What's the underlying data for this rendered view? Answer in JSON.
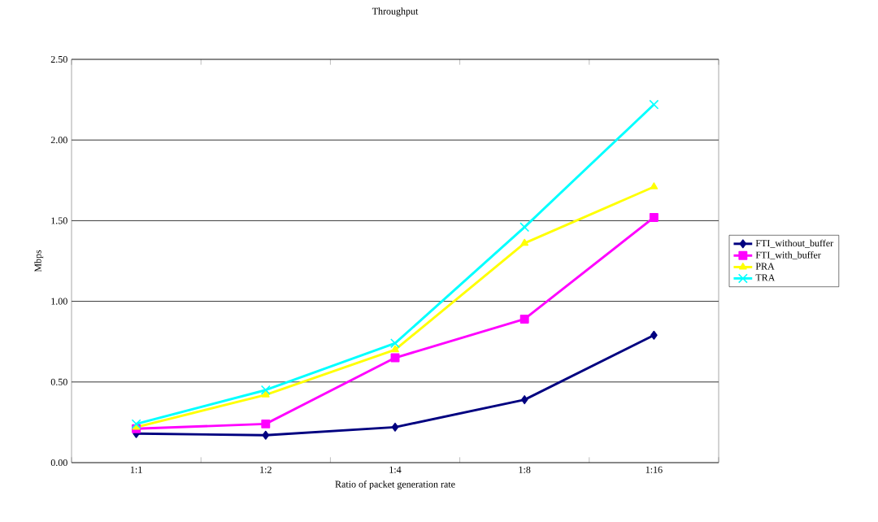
{
  "chart_data": {
    "type": "line",
    "title": "Throughput",
    "xlabel": "Ratio of packet generation rate",
    "ylabel": "Mbps",
    "categories": [
      "1:1",
      "1:2",
      "1:4",
      "1:8",
      "1:16"
    ],
    "series": [
      {
        "name": "FTI_without_buffer",
        "color": "#000080",
        "marker": "diamond",
        "values": [
          0.18,
          0.17,
          0.22,
          0.39,
          0.79
        ]
      },
      {
        "name": "FTI_with_buffer",
        "color": "#ff00ff",
        "marker": "square",
        "values": [
          0.21,
          0.24,
          0.65,
          0.89,
          1.52
        ]
      },
      {
        "name": "PRA",
        "color": "#ffff00",
        "marker": "triangle",
        "values": [
          0.22,
          0.42,
          0.7,
          1.36,
          1.71
        ]
      },
      {
        "name": "TRA",
        "color": "#00ffff",
        "marker": "cross",
        "values": [
          0.24,
          0.45,
          0.74,
          1.46,
          2.22
        ]
      }
    ],
    "ylim": [
      0,
      2.5
    ],
    "yticks": [
      {
        "value": 0,
        "label": "0.00"
      },
      {
        "value": 0.5,
        "label": "0.50"
      },
      {
        "value": 1,
        "label": "1.00"
      },
      {
        "value": 1.5,
        "label": "1.50"
      },
      {
        "value": 2,
        "label": "2.00"
      },
      {
        "value": 2.5,
        "label": "2.50"
      }
    ],
    "grid": "y",
    "legend": "right"
  }
}
